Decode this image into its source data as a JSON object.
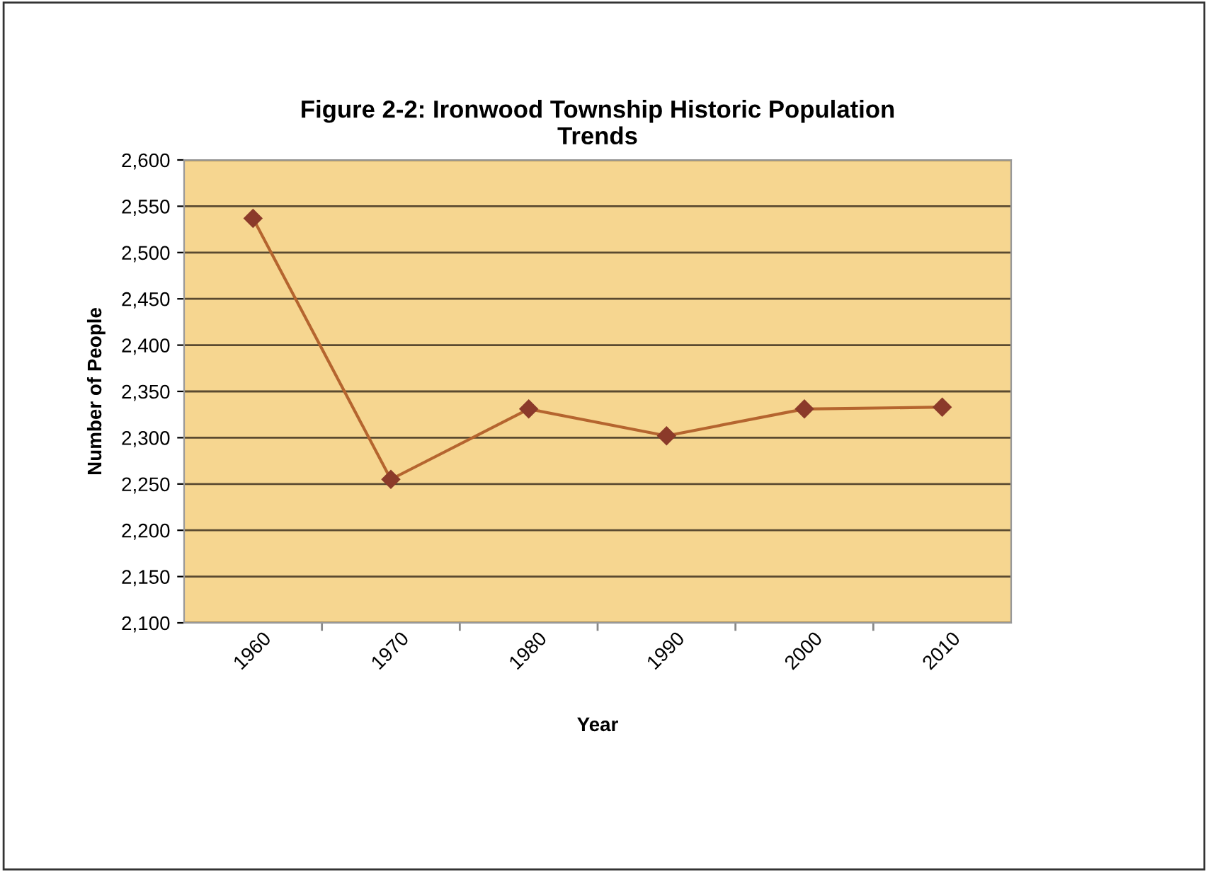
{
  "chart_data": {
    "type": "line",
    "title": "Figure 2-2: Ironwood Township Historic Population\nTrends",
    "xlabel": "Year",
    "ylabel": "Number of People",
    "categories": [
      "1960",
      "1970",
      "1980",
      "1990",
      "2000",
      "2010"
    ],
    "series": [
      {
        "color": "#b5652f",
        "values": [
          2537,
          2255,
          2331,
          2302,
          2331,
          2333
        ]
      }
    ],
    "ylim": [
      2100,
      2600
    ],
    "yticks": [
      {
        "value": 2100,
        "label": "2,100"
      },
      {
        "value": 2150,
        "label": "2,150"
      },
      {
        "value": 2200,
        "label": "2,200"
      },
      {
        "value": 2250,
        "label": "2,250"
      },
      {
        "value": 2300,
        "label": "2,300"
      },
      {
        "value": 2350,
        "label": "2,350"
      },
      {
        "value": 2400,
        "label": "2,400"
      },
      {
        "value": 2450,
        "label": "2,450"
      },
      {
        "value": 2500,
        "label": "2,500"
      },
      {
        "value": 2550,
        "label": "2,550"
      },
      {
        "value": 2600,
        "label": "2,600"
      }
    ],
    "grid": "y",
    "marker": "diamond",
    "line_style": "solid",
    "legend": false
  }
}
